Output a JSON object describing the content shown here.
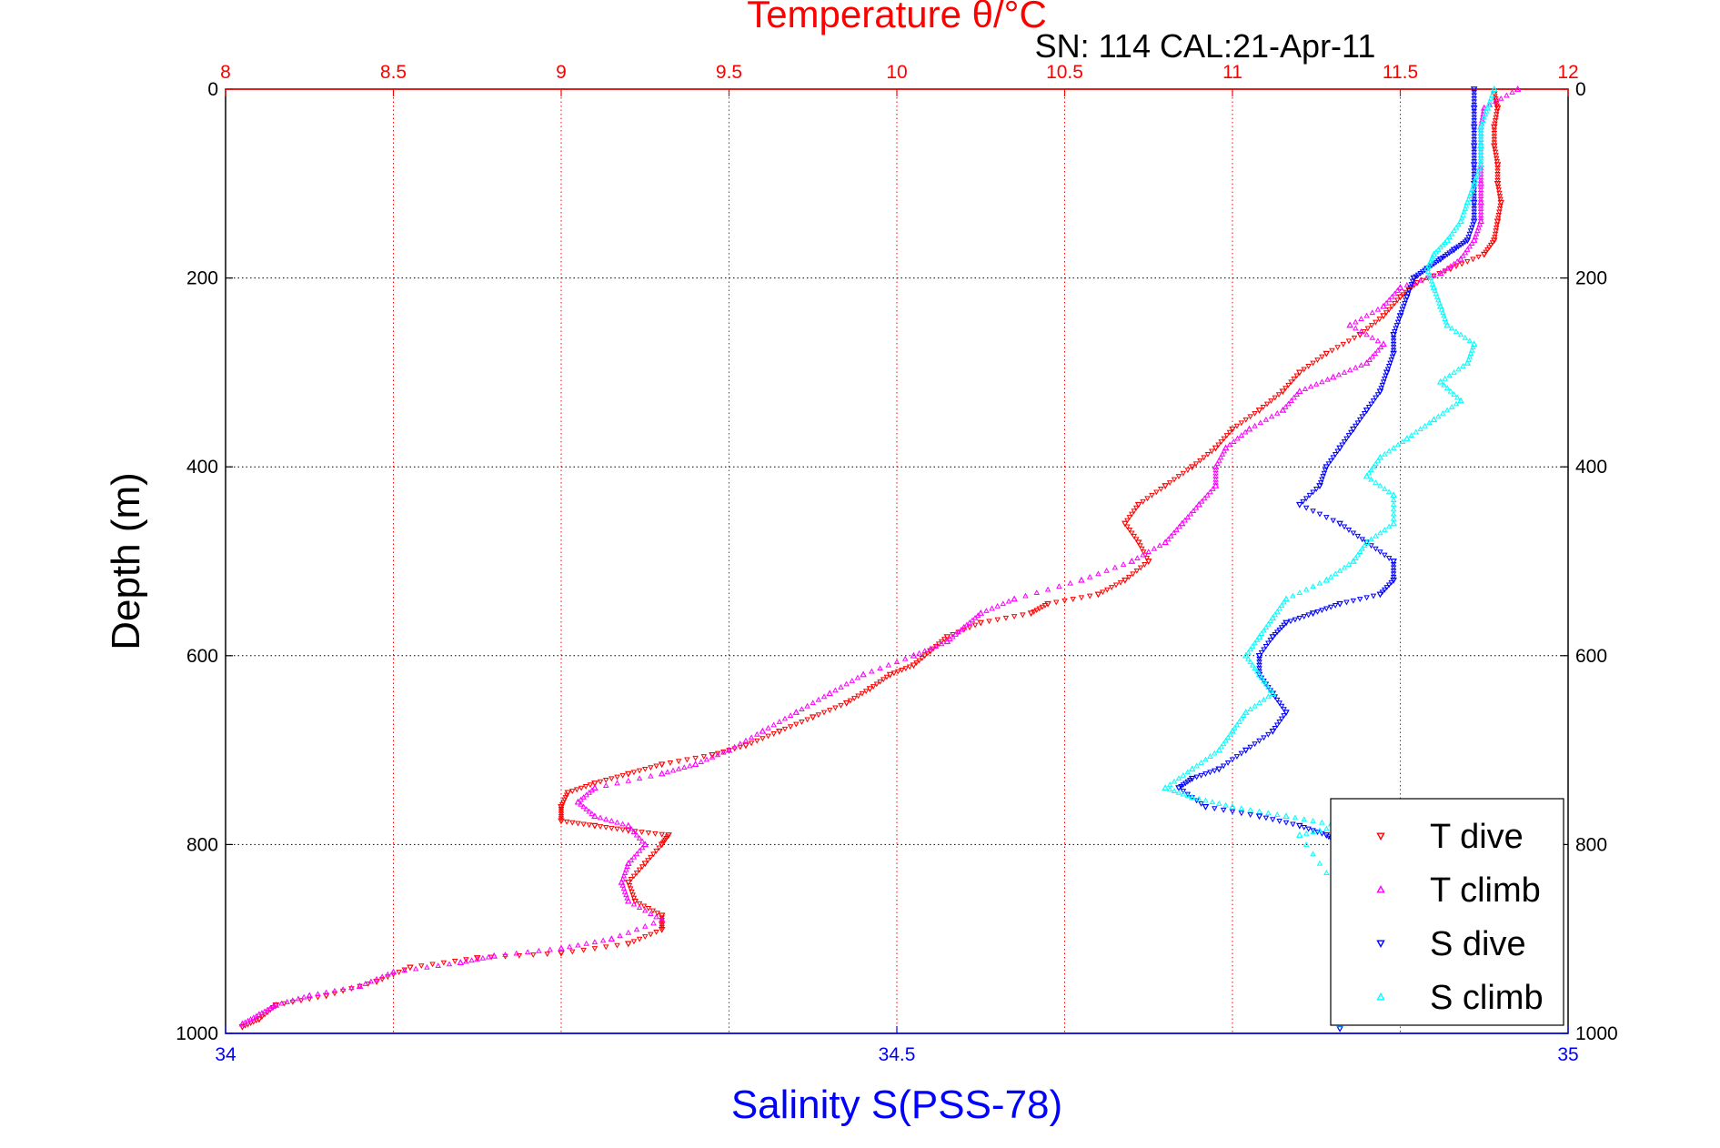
{
  "chart_data": {
    "type": "scatter",
    "title": "Temperature θ/°C",
    "subtitle": "SN: 114  CAL:21-Apr-11",
    "xlabel": "Salinity S(PSS-78)",
    "ylabel": "Depth (m)",
    "temperature_axis": {
      "lim": [
        8,
        12
      ],
      "ticks": [
        "8",
        "8.5",
        "9",
        "9.5",
        "10",
        "10.5",
        "11",
        "11.5",
        "12"
      ]
    },
    "salinity_axis": {
      "lim": [
        34,
        35
      ],
      "ticks": [
        "34",
        "34.5",
        "35"
      ]
    },
    "depth_axis": {
      "lim": [
        0,
        1000
      ],
      "reversed": true,
      "ticks": [
        "0",
        "200",
        "400",
        "600",
        "800",
        "1000"
      ]
    },
    "grid": true,
    "legend_position": "bottom-right",
    "series": [
      {
        "name": "T dive",
        "axis": "temperature",
        "marker": "triangle-down",
        "color": "#ff0000",
        "points": [
          [
            11.78,
            5
          ],
          [
            11.79,
            20
          ],
          [
            11.78,
            40
          ],
          [
            11.78,
            60
          ],
          [
            11.79,
            80
          ],
          [
            11.79,
            100
          ],
          [
            11.8,
            120
          ],
          [
            11.79,
            140
          ],
          [
            11.78,
            160
          ],
          [
            11.75,
            175
          ],
          [
            11.65,
            190
          ],
          [
            11.55,
            205
          ],
          [
            11.5,
            220
          ],
          [
            11.45,
            240
          ],
          [
            11.38,
            260
          ],
          [
            11.28,
            280
          ],
          [
            11.2,
            300
          ],
          [
            11.15,
            320
          ],
          [
            11.08,
            340
          ],
          [
            11.0,
            360
          ],
          [
            10.95,
            380
          ],
          [
            10.88,
            400
          ],
          [
            10.8,
            420
          ],
          [
            10.72,
            440
          ],
          [
            10.68,
            460
          ],
          [
            10.72,
            480
          ],
          [
            10.75,
            500
          ],
          [
            10.68,
            520
          ],
          [
            10.6,
            535
          ],
          [
            10.45,
            545
          ],
          [
            10.4,
            555
          ],
          [
            10.25,
            565
          ],
          [
            10.15,
            580
          ],
          [
            10.1,
            595
          ],
          [
            10.05,
            610
          ],
          [
            9.98,
            620
          ],
          [
            9.92,
            635
          ],
          [
            9.85,
            650
          ],
          [
            9.75,
            665
          ],
          [
            9.65,
            680
          ],
          [
            9.55,
            695
          ],
          [
            9.45,
            705
          ],
          [
            9.3,
            715
          ],
          [
            9.2,
            725
          ],
          [
            9.1,
            735
          ],
          [
            9.02,
            745
          ],
          [
            9.0,
            760
          ],
          [
            9.0,
            775
          ],
          [
            9.1,
            780
          ],
          [
            9.2,
            785
          ],
          [
            9.32,
            790
          ],
          [
            9.3,
            800
          ],
          [
            9.25,
            820
          ],
          [
            9.2,
            840
          ],
          [
            9.22,
            860
          ],
          [
            9.3,
            875
          ],
          [
            9.3,
            890
          ],
          [
            9.2,
            905
          ],
          [
            9.0,
            915
          ],
          [
            8.75,
            920
          ],
          [
            8.55,
            930
          ],
          [
            8.45,
            945
          ],
          [
            8.3,
            960
          ],
          [
            8.15,
            970
          ],
          [
            8.1,
            985
          ],
          [
            8.05,
            993
          ]
        ]
      },
      {
        "name": "T climb",
        "axis": "temperature",
        "marker": "triangle-up",
        "color": "#ff00ff",
        "points": [
          [
            11.85,
            0
          ],
          [
            11.75,
            20
          ],
          [
            11.74,
            40
          ],
          [
            11.74,
            60
          ],
          [
            11.74,
            80
          ],
          [
            11.74,
            100
          ],
          [
            11.74,
            120
          ],
          [
            11.74,
            140
          ],
          [
            11.72,
            160
          ],
          [
            11.68,
            180
          ],
          [
            11.62,
            195
          ],
          [
            11.5,
            210
          ],
          [
            11.45,
            230
          ],
          [
            11.35,
            250
          ],
          [
            11.45,
            270
          ],
          [
            11.4,
            290
          ],
          [
            11.3,
            305
          ],
          [
            11.2,
            320
          ],
          [
            11.15,
            340
          ],
          [
            11.05,
            360
          ],
          [
            10.98,
            380
          ],
          [
            10.95,
            400
          ],
          [
            10.95,
            420
          ],
          [
            10.9,
            440
          ],
          [
            10.85,
            460
          ],
          [
            10.8,
            480
          ],
          [
            10.7,
            500
          ],
          [
            10.55,
            520
          ],
          [
            10.35,
            540
          ],
          [
            10.25,
            555
          ],
          [
            10.2,
            570
          ],
          [
            10.15,
            585
          ],
          [
            10.05,
            600
          ],
          [
            9.9,
            620
          ],
          [
            9.8,
            640
          ],
          [
            9.7,
            660
          ],
          [
            9.6,
            680
          ],
          [
            9.5,
            700
          ],
          [
            9.4,
            715
          ],
          [
            9.3,
            725
          ],
          [
            9.1,
            740
          ],
          [
            9.05,
            755
          ],
          [
            9.1,
            770
          ],
          [
            9.2,
            780
          ],
          [
            9.25,
            800
          ],
          [
            9.2,
            820
          ],
          [
            9.18,
            840
          ],
          [
            9.2,
            860
          ],
          [
            9.3,
            880
          ],
          [
            9.15,
            900
          ],
          [
            9.0,
            910
          ],
          [
            8.8,
            918
          ],
          [
            8.7,
            925
          ],
          [
            8.5,
            935
          ],
          [
            8.4,
            950
          ],
          [
            8.25,
            960
          ],
          [
            8.15,
            970
          ],
          [
            8.1,
            980
          ],
          [
            8.05,
            990
          ]
        ]
      },
      {
        "name": "S dive",
        "axis": "salinity",
        "marker": "triangle-down",
        "color": "#0000ff",
        "points": [
          [
            34.93,
            0
          ],
          [
            34.93,
            20
          ],
          [
            34.93,
            40
          ],
          [
            34.93,
            60
          ],
          [
            34.93,
            80
          ],
          [
            34.93,
            100
          ],
          [
            34.93,
            120
          ],
          [
            34.93,
            140
          ],
          [
            34.925,
            160
          ],
          [
            34.915,
            170
          ],
          [
            34.905,
            180
          ],
          [
            34.895,
            190
          ],
          [
            34.885,
            200
          ],
          [
            34.88,
            220
          ],
          [
            34.875,
            240
          ],
          [
            34.87,
            260
          ],
          [
            34.87,
            280
          ],
          [
            34.865,
            300
          ],
          [
            34.86,
            320
          ],
          [
            34.85,
            340
          ],
          [
            34.84,
            360
          ],
          [
            34.83,
            380
          ],
          [
            34.82,
            400
          ],
          [
            34.815,
            420
          ],
          [
            34.8,
            440
          ],
          [
            34.83,
            460
          ],
          [
            34.85,
            480
          ],
          [
            34.87,
            500
          ],
          [
            34.87,
            520
          ],
          [
            34.86,
            535
          ],
          [
            34.83,
            545
          ],
          [
            34.81,
            555
          ],
          [
            34.79,
            565
          ],
          [
            34.78,
            580
          ],
          [
            34.77,
            600
          ],
          [
            34.77,
            620
          ],
          [
            34.78,
            640
          ],
          [
            34.79,
            660
          ],
          [
            34.78,
            680
          ],
          [
            34.76,
            700
          ],
          [
            34.74,
            720
          ],
          [
            34.72,
            730
          ],
          [
            34.71,
            740
          ],
          [
            34.73,
            760
          ],
          [
            34.77,
            770
          ],
          [
            34.8,
            780
          ],
          [
            34.82,
            790
          ],
          [
            34.83,
            800
          ],
          [
            34.83,
            850
          ],
          [
            34.83,
            900
          ],
          [
            34.83,
            950
          ],
          [
            34.83,
            995
          ]
        ]
      },
      {
        "name": "S climb",
        "axis": "salinity",
        "marker": "triangle-up",
        "color": "#00ffff",
        "points": [
          [
            34.945,
            0
          ],
          [
            34.94,
            20
          ],
          [
            34.935,
            40
          ],
          [
            34.935,
            60
          ],
          [
            34.935,
            80
          ],
          [
            34.93,
            100
          ],
          [
            34.925,
            120
          ],
          [
            34.92,
            140
          ],
          [
            34.91,
            160
          ],
          [
            34.9,
            175
          ],
          [
            34.895,
            190
          ],
          [
            34.9,
            210
          ],
          [
            34.905,
            230
          ],
          [
            34.91,
            250
          ],
          [
            34.93,
            270
          ],
          [
            34.925,
            290
          ],
          [
            34.905,
            310
          ],
          [
            34.92,
            330
          ],
          [
            34.9,
            350
          ],
          [
            34.88,
            370
          ],
          [
            34.86,
            390
          ],
          [
            34.85,
            410
          ],
          [
            34.87,
            430
          ],
          [
            34.87,
            460
          ],
          [
            34.85,
            480
          ],
          [
            34.84,
            500
          ],
          [
            34.82,
            520
          ],
          [
            34.79,
            540
          ],
          [
            34.78,
            560
          ],
          [
            34.77,
            580
          ],
          [
            34.76,
            600
          ],
          [
            34.77,
            620
          ],
          [
            34.78,
            640
          ],
          [
            34.76,
            660
          ],
          [
            34.75,
            680
          ],
          [
            34.74,
            700
          ],
          [
            34.72,
            720
          ],
          [
            34.7,
            740
          ],
          [
            34.72,
            750
          ],
          [
            34.75,
            760
          ],
          [
            34.79,
            770
          ],
          [
            34.83,
            780
          ],
          [
            34.8,
            790
          ],
          [
            34.83,
            850
          ],
          [
            34.83,
            900
          ],
          [
            34.83,
            950
          ],
          [
            34.83,
            990
          ]
        ]
      }
    ]
  }
}
